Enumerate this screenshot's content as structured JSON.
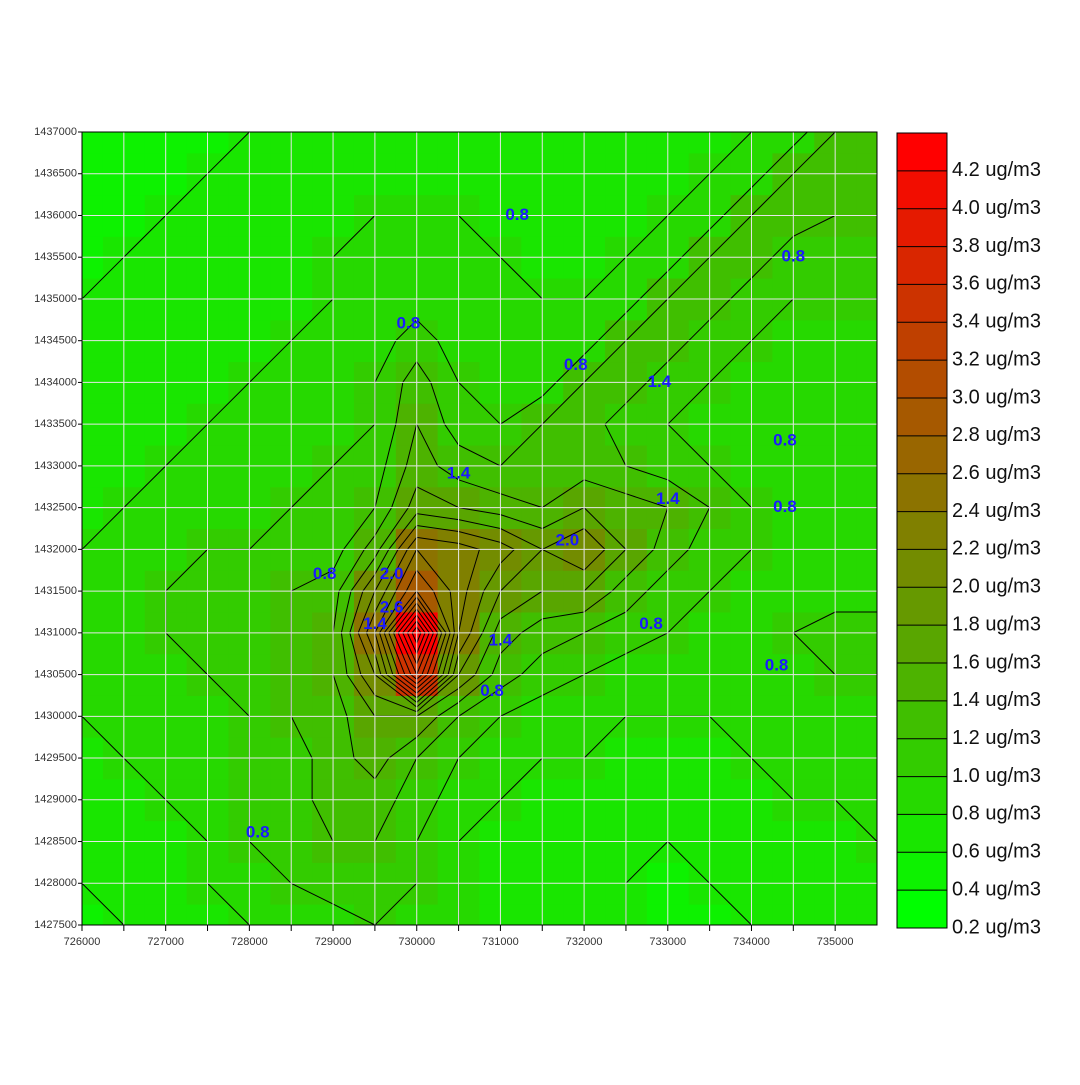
{
  "chart_data": {
    "type": "contour",
    "xlim": [
      726000,
      735500
    ],
    "ylim": [
      1427500,
      1437000
    ],
    "xticks": [
      726000,
      727000,
      728000,
      729000,
      730000,
      731000,
      732000,
      733000,
      734000,
      735000
    ],
    "xminorticks": [
      726500,
      727500,
      728500,
      729500,
      730500,
      731500,
      732500,
      733500,
      734500
    ],
    "yticks": [
      1427500,
      1428000,
      1428500,
      1429000,
      1429500,
      1430000,
      1430500,
      1431000,
      1431500,
      1432000,
      1432500,
      1433000,
      1433500,
      1434000,
      1434500,
      1435000,
      1435500,
      1436000,
      1436500,
      1437000
    ],
    "grid": true,
    "x": [
      726000,
      726500,
      727000,
      727500,
      728000,
      728500,
      729000,
      729500,
      730000,
      730500,
      731000,
      731500,
      732000,
      732500,
      733000,
      733500,
      734000,
      734500,
      735000,
      735500
    ],
    "y": [
      1427500,
      1428000,
      1428500,
      1429000,
      1429500,
      1430000,
      1430500,
      1431000,
      1431500,
      1432000,
      1432500,
      1433000,
      1433500,
      1434000,
      1434500,
      1435000,
      1435500,
      1436000,
      1436500,
      1437000
    ],
    "z": [
      [
        0.5,
        0.6,
        0.6,
        0.7,
        0.8,
        0.8,
        0.9,
        1.0,
        0.9,
        0.8,
        0.7,
        0.6,
        0.6,
        0.6,
        0.5,
        0.5,
        0.6,
        0.6,
        0.6,
        0.7
      ],
      [
        0.6,
        0.6,
        0.7,
        0.8,
        0.9,
        1.0,
        1.1,
        1.1,
        1.0,
        0.8,
        0.7,
        0.6,
        0.6,
        0.6,
        0.5,
        0.6,
        0.6,
        0.7,
        0.7,
        0.7
      ],
      [
        0.6,
        0.7,
        0.7,
        0.8,
        1.0,
        1.1,
        1.2,
        1.2,
        1.0,
        0.8,
        0.7,
        0.7,
        0.6,
        0.6,
        0.6,
        0.6,
        0.7,
        0.7,
        0.7,
        0.8
      ],
      [
        0.7,
        0.7,
        0.8,
        0.9,
        1.0,
        1.1,
        1.3,
        1.3,
        1.1,
        0.9,
        0.8,
        0.7,
        0.7,
        0.7,
        0.7,
        0.7,
        0.7,
        0.8,
        0.8,
        0.8
      ],
      [
        0.7,
        0.8,
        0.8,
        0.9,
        1.0,
        1.1,
        1.3,
        1.5,
        1.2,
        1.0,
        0.9,
        0.8,
        0.8,
        0.7,
        0.7,
        0.7,
        0.8,
        0.8,
        0.8,
        0.8
      ],
      [
        0.8,
        0.8,
        0.9,
        0.9,
        1.0,
        1.2,
        1.3,
        1.6,
        1.6,
        1.2,
        1.0,
        0.9,
        0.8,
        0.8,
        0.8,
        0.8,
        0.8,
        0.8,
        0.9,
        0.9
      ],
      [
        0.9,
        0.9,
        0.9,
        1.0,
        1.1,
        1.2,
        1.4,
        2.0,
        3.4,
        1.8,
        1.3,
        1.1,
        1.0,
        0.9,
        0.9,
        0.9,
        0.8,
        0.9,
        1.0,
        1.0
      ],
      [
        0.9,
        0.9,
        1.0,
        1.0,
        1.1,
        1.2,
        1.4,
        2.4,
        4.2,
        2.2,
        1.5,
        1.3,
        1.2,
        1.1,
        1.0,
        0.9,
        0.9,
        1.0,
        1.1,
        1.1
      ],
      [
        0.9,
        0.9,
        1.0,
        1.0,
        1.1,
        1.2,
        1.3,
        2.0,
        2.8,
        2.3,
        1.8,
        1.6,
        1.6,
        1.3,
        1.1,
        1.0,
        0.9,
        0.9,
        0.9,
        0.9
      ],
      [
        0.8,
        0.8,
        0.9,
        1.0,
        1.0,
        1.1,
        1.1,
        1.5,
        2.4,
        2.3,
        2.1,
        1.8,
        2.0,
        1.6,
        1.3,
        1.1,
        1.0,
        0.9,
        0.8,
        0.8
      ],
      [
        0.7,
        0.8,
        0.8,
        0.9,
        0.9,
        1.0,
        1.0,
        1.2,
        1.7,
        1.6,
        1.5,
        1.4,
        1.6,
        1.5,
        1.4,
        1.2,
        1.0,
        0.9,
        0.8,
        0.8
      ],
      [
        0.7,
        0.7,
        0.8,
        0.8,
        0.9,
        0.9,
        1.0,
        1.1,
        1.5,
        1.3,
        1.2,
        1.3,
        1.3,
        1.2,
        1.1,
        1.0,
        0.9,
        0.8,
        0.8,
        0.8
      ],
      [
        0.6,
        0.7,
        0.7,
        0.8,
        0.8,
        0.9,
        0.9,
        1.0,
        1.4,
        1.1,
        1.0,
        1.2,
        1.3,
        1.1,
        1.0,
        0.9,
        0.8,
        0.8,
        0.8,
        0.8
      ],
      [
        0.6,
        0.6,
        0.7,
        0.7,
        0.8,
        0.8,
        0.9,
        1.0,
        1.3,
        1.0,
        0.9,
        0.9,
        1.2,
        1.3,
        1.1,
        1.0,
        0.9,
        0.8,
        0.8,
        0.8
      ],
      [
        0.6,
        0.6,
        0.6,
        0.7,
        0.7,
        0.8,
        0.9,
        0.9,
        1.1,
        0.9,
        0.8,
        0.8,
        0.9,
        1.2,
        1.3,
        1.1,
        1.0,
        0.9,
        0.8,
        0.9
      ],
      [
        0.6,
        0.6,
        0.6,
        0.7,
        0.7,
        0.7,
        0.8,
        0.9,
        0.9,
        0.8,
        0.8,
        0.8,
        0.8,
        0.9,
        1.2,
        1.3,
        1.1,
        1.0,
        1.0,
        1.0
      ],
      [
        0.5,
        0.6,
        0.6,
        0.6,
        0.7,
        0.7,
        0.8,
        0.8,
        0.9,
        0.8,
        0.8,
        0.7,
        0.7,
        0.8,
        0.9,
        1.2,
        1.3,
        1.1,
        1.1,
        1.1
      ],
      [
        0.5,
        0.5,
        0.6,
        0.6,
        0.6,
        0.7,
        0.7,
        0.8,
        0.8,
        0.8,
        0.7,
        0.7,
        0.7,
        0.7,
        0.8,
        0.9,
        1.2,
        1.3,
        1.2,
        1.2
      ],
      [
        0.5,
        0.5,
        0.5,
        0.6,
        0.6,
        0.6,
        0.7,
        0.7,
        0.7,
        0.7,
        0.7,
        0.6,
        0.6,
        0.7,
        0.7,
        0.8,
        0.9,
        1.2,
        1.3,
        1.3
      ],
      [
        0.5,
        0.5,
        0.5,
        0.5,
        0.6,
        0.6,
        0.6,
        0.6,
        0.7,
        0.7,
        0.6,
        0.6,
        0.6,
        0.6,
        0.7,
        0.7,
        0.8,
        0.9,
        1.2,
        1.2
      ]
    ],
    "zlim": [
      0.2,
      4.4
    ],
    "colormap": [
      "#00ff00",
      "#ff0000"
    ],
    "levels": [
      {
        "value": 0.2,
        "label": "0.2 ug/m3"
      },
      {
        "value": 0.4,
        "label": "0.4 ug/m3"
      },
      {
        "value": 0.6,
        "label": "0.6 ug/m3"
      },
      {
        "value": 0.8,
        "label": "0.8 ug/m3"
      },
      {
        "value": 1.0,
        "label": "1.0 ug/m3"
      },
      {
        "value": 1.2,
        "label": "1.2 ug/m3"
      },
      {
        "value": 1.4,
        "label": "1.4 ug/m3"
      },
      {
        "value": 1.6,
        "label": "1.6 ug/m3"
      },
      {
        "value": 1.8,
        "label": "1.8 ug/m3"
      },
      {
        "value": 2.0,
        "label": "2.0 ug/m3"
      },
      {
        "value": 2.2,
        "label": "2.2 ug/m3"
      },
      {
        "value": 2.4,
        "label": "2.4 ug/m3"
      },
      {
        "value": 2.6,
        "label": "2.6 ug/m3"
      },
      {
        "value": 2.8,
        "label": "2.8 ug/m3"
      },
      {
        "value": 3.0,
        "label": "3.0 ug/m3"
      },
      {
        "value": 3.2,
        "label": "3.2 ug/m3"
      },
      {
        "value": 3.4,
        "label": "3.4 ug/m3"
      },
      {
        "value": 3.6,
        "label": "3.6 ug/m3"
      },
      {
        "value": 3.8,
        "label": "3.8 ug/m3"
      },
      {
        "value": 4.0,
        "label": "4.0 ug/m3"
      },
      {
        "value": 4.2,
        "label": "4.2 ug/m3"
      }
    ],
    "contour_labels": [
      {
        "value": 0.8,
        "x": 729900,
        "y": 1434700
      },
      {
        "value": 0.8,
        "x": 731200,
        "y": 1436000
      },
      {
        "value": 0.8,
        "x": 731900,
        "y": 1434200
      },
      {
        "value": 1.4,
        "x": 732900,
        "y": 1434000
      },
      {
        "value": 0.8,
        "x": 734500,
        "y": 1435500
      },
      {
        "value": 0.8,
        "x": 734400,
        "y": 1433300
      },
      {
        "value": 0.8,
        "x": 734400,
        "y": 1432500
      },
      {
        "value": 1.4,
        "x": 733000,
        "y": 1432600
      },
      {
        "value": 2,
        "label": "2.0",
        "x": 731800,
        "y": 1432100
      },
      {
        "value": 0.8,
        "x": 728900,
        "y": 1431700
      },
      {
        "value": 1.4,
        "x": 729500,
        "y": 1431100
      },
      {
        "value": 2,
        "label": "2.0",
        "x": 729700,
        "y": 1431700
      },
      {
        "value": 2.6,
        "x": 729700,
        "y": 1431300
      },
      {
        "value": 1.4,
        "x": 730500,
        "y": 1432900
      },
      {
        "value": 1.4,
        "x": 731000,
        "y": 1430900
      },
      {
        "value": 0.8,
        "x": 730900,
        "y": 1430300
      },
      {
        "value": 0.8,
        "x": 732800,
        "y": 1431100
      },
      {
        "value": 0.8,
        "x": 734300,
        "y": 1430600
      },
      {
        "value": 0.8,
        "x": 728100,
        "y": 1428600
      }
    ]
  }
}
